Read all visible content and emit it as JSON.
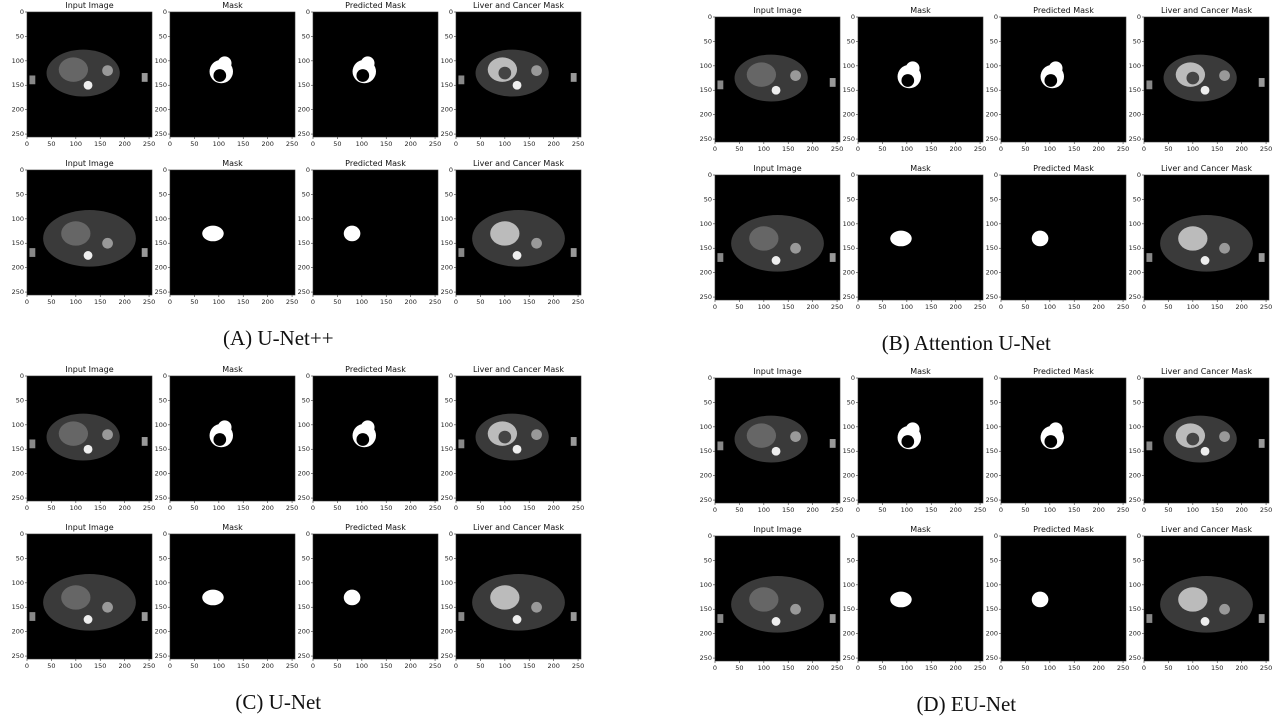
{
  "axes": {
    "xlim": [
      0,
      256
    ],
    "ylim": [
      0,
      256
    ],
    "xticks": [
      0,
      50,
      100,
      150,
      200,
      250
    ],
    "yticks": [
      0,
      50,
      100,
      150,
      200,
      250
    ]
  },
  "panels": [
    {
      "caption": "(A) U-Net++",
      "rows": [
        {
          "titles": [
            "Input Image",
            "Mask",
            "Predicted Mask",
            "Liver and Cancer Mask"
          ]
        },
        {
          "titles": [
            "Input Image",
            "Mask",
            "Predicted Mask",
            "Liver and Cancer Mask"
          ]
        }
      ]
    },
    {
      "caption": "(B) Attention U-Net",
      "rows": [
        {
          "titles": [
            "Input Image",
            "Mask",
            "Predicted Mask",
            "Liver and Cancer Mask"
          ]
        },
        {
          "titles": [
            "Input Image",
            "Mask",
            "Predicted Mask",
            "Liver and Cancer Mask"
          ]
        }
      ]
    },
    {
      "caption": "(C) U-Net",
      "rows": [
        {
          "titles": [
            "Input Image",
            "Mask",
            "Predicted Mask",
            "Liver and Cancer Mask"
          ]
        },
        {
          "titles": [
            "Input Image",
            "Mask",
            "Predicted Mask",
            "Liver and Cancer Mask"
          ]
        }
      ]
    },
    {
      "caption": "(D) EU-Net",
      "rows": [
        {
          "titles": [
            "Input Image",
            "Mask",
            "Predicted Mask",
            "Liver and Cancer Mask"
          ]
        },
        {
          "titles": [
            "Input Image",
            "Mask",
            "Predicted Mask",
            "Liver and Cancer Mask"
          ]
        }
      ]
    }
  ]
}
